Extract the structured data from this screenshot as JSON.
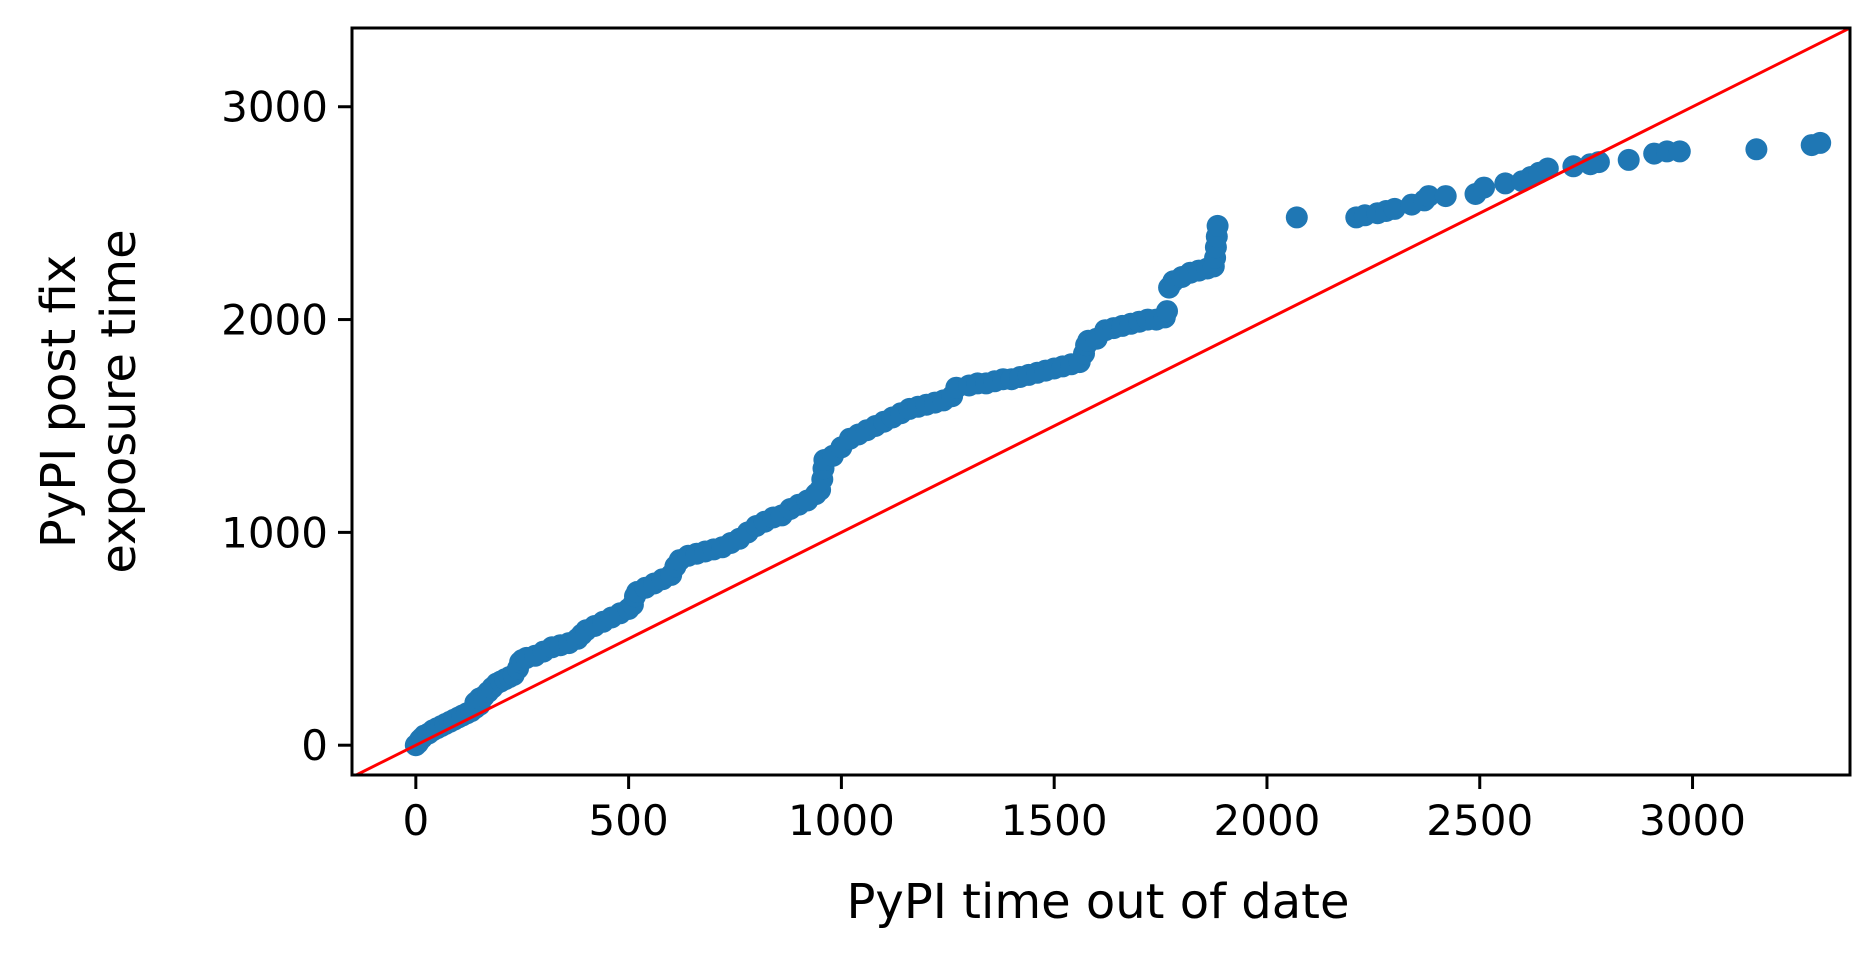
{
  "chart_data": {
    "type": "scatter",
    "title": "",
    "xlabel": "PyPI time out of date",
    "ylabel": "PyPI post fix\nexposure time",
    "xlim": [
      -150,
      3370
    ],
    "ylim": [
      -140,
      3370
    ],
    "x_ticks": [
      0,
      500,
      1000,
      1500,
      2000,
      2500,
      3000
    ],
    "y_ticks": [
      0,
      1000,
      2000,
      3000
    ],
    "grid": false,
    "legend": "none",
    "series": [
      {
        "color": "#1f77b4",
        "marker": "circle",
        "points": [
          [
            0,
            0
          ],
          [
            5,
            10
          ],
          [
            10,
            25
          ],
          [
            15,
            35
          ],
          [
            20,
            45
          ],
          [
            30,
            55
          ],
          [
            40,
            70
          ],
          [
            50,
            80
          ],
          [
            60,
            90
          ],
          [
            70,
            100
          ],
          [
            80,
            110
          ],
          [
            90,
            120
          ],
          [
            100,
            130
          ],
          [
            110,
            140
          ],
          [
            120,
            150
          ],
          [
            130,
            160
          ],
          [
            140,
            175
          ],
          [
            150,
            190
          ],
          [
            140,
            200
          ],
          [
            150,
            220
          ],
          [
            160,
            230
          ],
          [
            170,
            250
          ],
          [
            180,
            270
          ],
          [
            190,
            290
          ],
          [
            200,
            300
          ],
          [
            210,
            310
          ],
          [
            220,
            320
          ],
          [
            230,
            330
          ],
          [
            240,
            360
          ],
          [
            245,
            390
          ],
          [
            250,
            400
          ],
          [
            260,
            410
          ],
          [
            280,
            420
          ],
          [
            300,
            440
          ],
          [
            320,
            460
          ],
          [
            340,
            470
          ],
          [
            360,
            480
          ],
          [
            380,
            500
          ],
          [
            390,
            520
          ],
          [
            400,
            540
          ],
          [
            420,
            560
          ],
          [
            440,
            580
          ],
          [
            460,
            600
          ],
          [
            480,
            620
          ],
          [
            500,
            640
          ],
          [
            510,
            660
          ],
          [
            515,
            700
          ],
          [
            520,
            720
          ],
          [
            540,
            740
          ],
          [
            560,
            760
          ],
          [
            580,
            780
          ],
          [
            600,
            800
          ],
          [
            610,
            840
          ],
          [
            620,
            870
          ],
          [
            640,
            890
          ],
          [
            660,
            900
          ],
          [
            680,
            910
          ],
          [
            700,
            920
          ],
          [
            720,
            930
          ],
          [
            740,
            950
          ],
          [
            760,
            970
          ],
          [
            780,
            1000
          ],
          [
            800,
            1030
          ],
          [
            820,
            1050
          ],
          [
            840,
            1070
          ],
          [
            860,
            1080
          ],
          [
            880,
            1110
          ],
          [
            900,
            1130
          ],
          [
            920,
            1150
          ],
          [
            940,
            1180
          ],
          [
            950,
            1200
          ],
          [
            955,
            1250
          ],
          [
            958,
            1300
          ],
          [
            960,
            1340
          ],
          [
            980,
            1360
          ],
          [
            1000,
            1400
          ],
          [
            1020,
            1440
          ],
          [
            1040,
            1460
          ],
          [
            1060,
            1480
          ],
          [
            1080,
            1500
          ],
          [
            1100,
            1520
          ],
          [
            1120,
            1540
          ],
          [
            1140,
            1560
          ],
          [
            1160,
            1580
          ],
          [
            1180,
            1590
          ],
          [
            1200,
            1600
          ],
          [
            1220,
            1610
          ],
          [
            1240,
            1620
          ],
          [
            1260,
            1640
          ],
          [
            1270,
            1680
          ],
          [
            1300,
            1690
          ],
          [
            1320,
            1700
          ],
          [
            1340,
            1700
          ],
          [
            1360,
            1710
          ],
          [
            1380,
            1720
          ],
          [
            1400,
            1720
          ],
          [
            1420,
            1730
          ],
          [
            1440,
            1740
          ],
          [
            1460,
            1750
          ],
          [
            1480,
            1760
          ],
          [
            1500,
            1770
          ],
          [
            1520,
            1780
          ],
          [
            1540,
            1790
          ],
          [
            1560,
            1800
          ],
          [
            1570,
            1840
          ],
          [
            1575,
            1880
          ],
          [
            1580,
            1900
          ],
          [
            1600,
            1910
          ],
          [
            1620,
            1950
          ],
          [
            1640,
            1960
          ],
          [
            1660,
            1970
          ],
          [
            1680,
            1980
          ],
          [
            1700,
            1990
          ],
          [
            1720,
            2000
          ],
          [
            1740,
            2000
          ],
          [
            1760,
            2010
          ],
          [
            1765,
            2040
          ],
          [
            1770,
            2150
          ],
          [
            1780,
            2180
          ],
          [
            1800,
            2200
          ],
          [
            1820,
            2220
          ],
          [
            1840,
            2230
          ],
          [
            1860,
            2240
          ],
          [
            1875,
            2250
          ],
          [
            1878,
            2290
          ],
          [
            1880,
            2340
          ],
          [
            1882,
            2390
          ],
          [
            1884,
            2440
          ],
          [
            2070,
            2480
          ],
          [
            2210,
            2480
          ],
          [
            2230,
            2490
          ],
          [
            2260,
            2500
          ],
          [
            2280,
            2510
          ],
          [
            2300,
            2520
          ],
          [
            2340,
            2540
          ],
          [
            2370,
            2560
          ],
          [
            2380,
            2580
          ],
          [
            2420,
            2580
          ],
          [
            2490,
            2590
          ],
          [
            2510,
            2620
          ],
          [
            2560,
            2640
          ],
          [
            2600,
            2650
          ],
          [
            2620,
            2670
          ],
          [
            2640,
            2690
          ],
          [
            2660,
            2710
          ],
          [
            2720,
            2720
          ],
          [
            2760,
            2730
          ],
          [
            2780,
            2740
          ],
          [
            2850,
            2750
          ],
          [
            2910,
            2780
          ],
          [
            2940,
            2790
          ],
          [
            2970,
            2790
          ],
          [
            3150,
            2800
          ],
          [
            3280,
            2820
          ],
          [
            3300,
            2830
          ]
        ]
      },
      {
        "color": "#ff0000",
        "marker": "line",
        "points": [
          [
            -150,
            -150
          ],
          [
            3370,
            3370
          ]
        ]
      }
    ]
  }
}
